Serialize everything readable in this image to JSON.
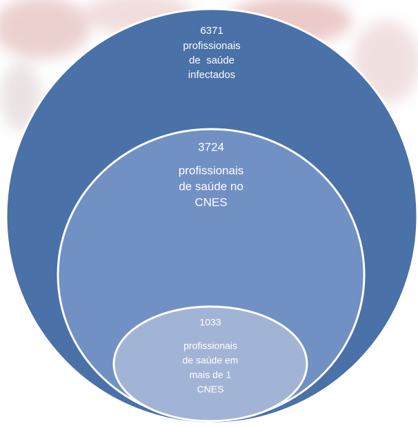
{
  "nodes": [
    {
      "number": 6371,
      "lines": [
        "profissionais",
        "de  saúde",
        "infectados"
      ]
    },
    {
      "number": 3724,
      "lines": [
        "profissionais",
        "de saúde no",
        "CNES"
      ]
    },
    {
      "number": 1033,
      "lines": [
        "profissionais",
        "de saúde em",
        "mais de 1",
        "CNES"
      ]
    }
  ]
}
